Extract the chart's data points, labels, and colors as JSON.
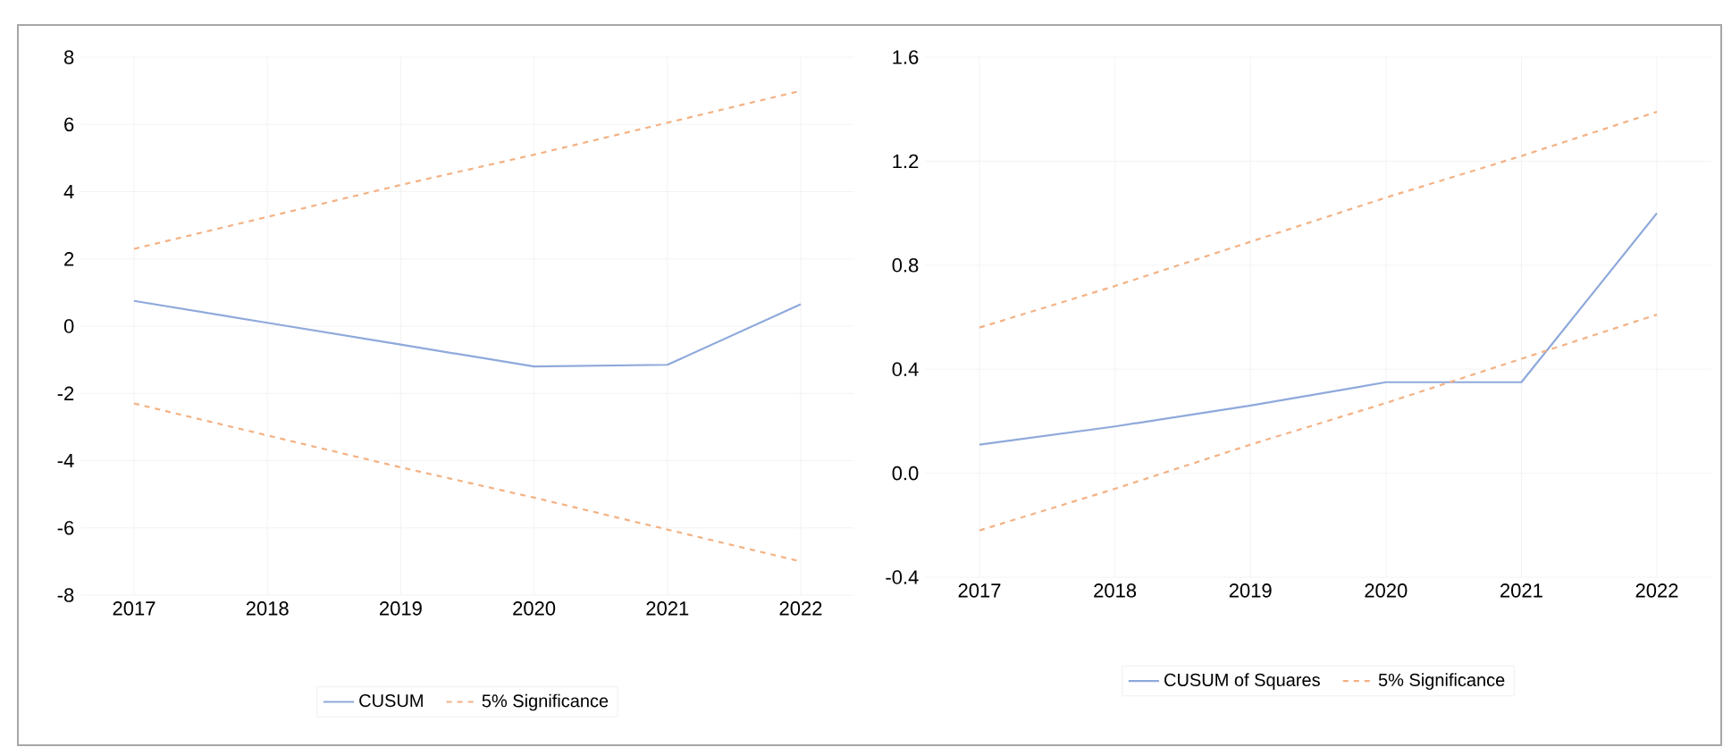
{
  "chart_data": [
    {
      "type": "line",
      "categories": [
        "2017",
        "2018",
        "2019",
        "2020",
        "2021",
        "2022"
      ],
      "series": [
        {
          "name": "CUSUM",
          "color": "#8ea9db",
          "line_style": "solid",
          "values": [
            0.75,
            0.1,
            -0.55,
            -1.2,
            -1.15,
            0.65
          ]
        },
        {
          "name": "5% Significance",
          "color": "#f4b183",
          "line_style": "dashed",
          "values": [
            2.3,
            3.25,
            4.2,
            5.1,
            6.05,
            7.0
          ]
        },
        {
          "color": "#f4b183",
          "line_style": "dashed",
          "values": [
            -2.3,
            -3.25,
            -4.2,
            -5.1,
            -6.05,
            -7.0
          ]
        }
      ],
      "ylim": [
        -8,
        8
      ],
      "yticks": [
        -8,
        -6,
        -4,
        -2,
        0,
        2,
        4,
        6,
        8
      ],
      "grid": true,
      "legend": "bottom"
    },
    {
      "type": "line",
      "categories": [
        "2017",
        "2018",
        "2019",
        "2020",
        "2021",
        "2022"
      ],
      "series": [
        {
          "name": "CUSUM of Squares",
          "color": "#8ea9db",
          "line_style": "solid",
          "values": [
            0.11,
            0.18,
            0.26,
            0.35,
            0.35,
            1.0
          ]
        },
        {
          "name": "5% Significance",
          "color": "#f4b183",
          "line_style": "dashed",
          "values": [
            0.56,
            0.72,
            0.89,
            1.06,
            1.22,
            1.39
          ]
        },
        {
          "color": "#f4b183",
          "line_style": "dashed",
          "values": [
            -0.22,
            -0.06,
            0.11,
            0.27,
            0.44,
            0.61
          ]
        }
      ],
      "ylim": [
        -0.4,
        1.6
      ],
      "yticks": [
        {
          "value": -0.4,
          "label": "-0.4"
        },
        {
          "value": 0,
          "label": "0.0"
        },
        {
          "value": 0.4,
          "label": "0.4"
        },
        {
          "value": 0.8,
          "label": "0.8"
        },
        {
          "value": 1.2,
          "label": "1.2"
        },
        {
          "value": 1.6,
          "label": "1.6"
        }
      ],
      "grid": true,
      "legend": "bottom"
    }
  ]
}
